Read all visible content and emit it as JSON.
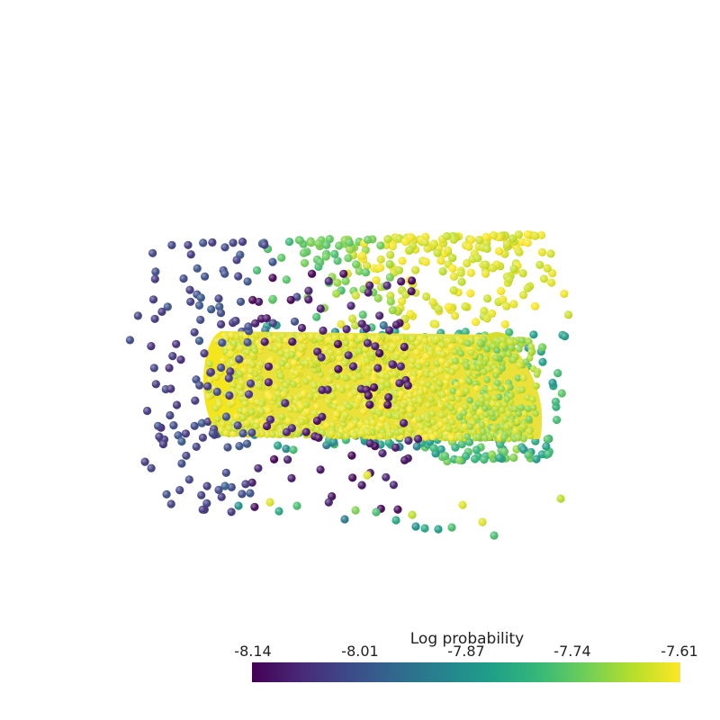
{
  "colormap": {
    "name": "viridis",
    "stops": [
      "#440154",
      "#482878",
      "#3e4989",
      "#31688e",
      "#26828e",
      "#1f9e89",
      "#35b779",
      "#6ece58",
      "#b5de2b",
      "#fde725"
    ]
  },
  "colorbar": {
    "title": "Log probability",
    "ticks": [
      "-8.14",
      "-8.01",
      "-7.87",
      "-7.74",
      "-7.61"
    ]
  }
}
